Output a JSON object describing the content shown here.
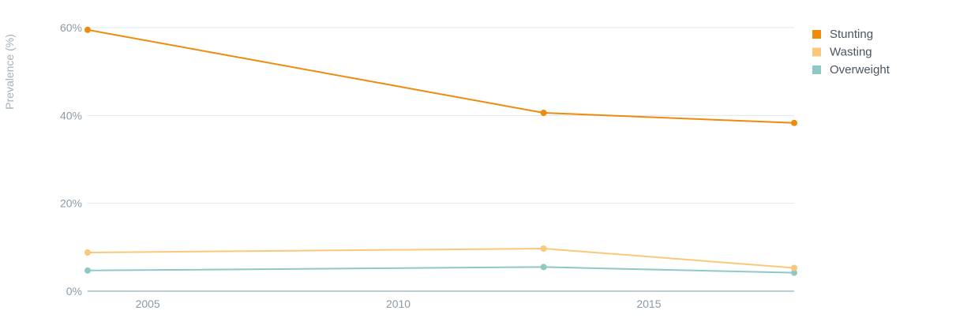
{
  "chart_data": {
    "type": "line",
    "title": "",
    "xlabel": "",
    "ylabel": "Prevalence (%)",
    "xlim": [
      2003.8,
      2017.9
    ],
    "ylim": [
      0,
      60
    ],
    "x_ticks": [
      2005,
      2010,
      2015
    ],
    "y_ticks": [
      0,
      20,
      40,
      60
    ],
    "y_tick_suffix": "%",
    "grid": "horizontal",
    "legend_position": "top-right",
    "series": [
      {
        "name": "Stunting",
        "color": "#ee8a0c",
        "x": [
          2003.8,
          2012.9,
          2017.9
        ],
        "y": [
          59.5,
          40.6,
          38.3
        ]
      },
      {
        "name": "Wasting",
        "color": "#fbc77a",
        "x": [
          2003.8,
          2012.9,
          2017.9
        ],
        "y": [
          8.8,
          9.7,
          5.3
        ]
      },
      {
        "name": "Overweight",
        "color": "#8ec9c6",
        "x": [
          2003.8,
          2012.9,
          2017.9
        ],
        "y": [
          4.7,
          5.5,
          4.2
        ]
      }
    ]
  }
}
